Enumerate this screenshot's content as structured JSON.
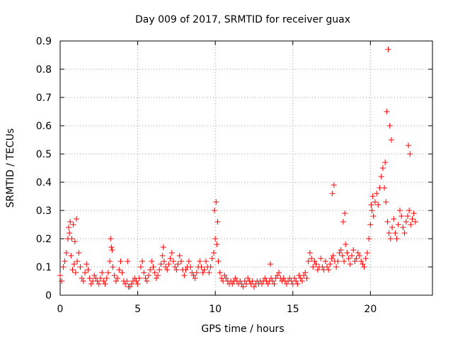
{
  "chart_data": {
    "type": "scatter",
    "title": "Day 009 of 2017, SRMTID for receiver guax",
    "xlabel": "GPS time / hours",
    "ylabel": "SRMTID / TECUs",
    "xlim": [
      0,
      24
    ],
    "ylim": [
      0,
      0.9
    ],
    "xticks": [
      0,
      5,
      10,
      15,
      20
    ],
    "yticks": [
      0,
      0.1,
      0.2,
      0.3,
      0.4,
      0.5,
      0.6,
      0.7,
      0.8,
      0.9
    ],
    "grid": true,
    "marker": "+",
    "color": "#ff0000",
    "series": [
      {
        "name": "SRMTID",
        "x": [
          0.0,
          0.1,
          0.2,
          0.3,
          0.4,
          0.5,
          0.6,
          0.7,
          0.8,
          0.9,
          1.0,
          1.1,
          1.2,
          1.3,
          1.4,
          1.5,
          1.6,
          1.7,
          1.8,
          1.9,
          2.0,
          2.1,
          2.2,
          2.3,
          2.4,
          2.5,
          2.6,
          2.7,
          2.8,
          2.9,
          3.0,
          3.1,
          3.2,
          3.3,
          3.4,
          3.5,
          3.6,
          3.7,
          3.8,
          3.9,
          4.0,
          4.1,
          4.2,
          4.3,
          4.4,
          4.5,
          4.6,
          4.7,
          4.8,
          4.9,
          5.0,
          5.1,
          5.2,
          5.3,
          5.4,
          5.5,
          5.6,
          5.7,
          5.8,
          5.9,
          6.0,
          6.1,
          6.2,
          6.3,
          6.4,
          6.5,
          6.6,
          6.7,
          6.8,
          6.9,
          7.0,
          7.1,
          7.2,
          7.3,
          7.4,
          7.5,
          7.6,
          7.7,
          7.8,
          7.9,
          8.0,
          8.1,
          8.2,
          8.3,
          8.4,
          8.5,
          8.6,
          8.7,
          8.8,
          8.9,
          9.0,
          9.1,
          9.2,
          9.3,
          9.4,
          9.5,
          9.6,
          9.7,
          9.8,
          9.9,
          10.0,
          10.1,
          10.2,
          10.3,
          10.4,
          10.5,
          10.6,
          10.7,
          10.8,
          10.9,
          11.0,
          11.1,
          11.2,
          11.3,
          11.4,
          11.5,
          11.6,
          11.7,
          11.8,
          11.9,
          12.0,
          12.1,
          12.2,
          12.3,
          12.4,
          12.5,
          12.6,
          12.7,
          12.8,
          12.9,
          13.0,
          13.1,
          13.2,
          13.3,
          13.4,
          13.5,
          13.6,
          13.7,
          13.8,
          13.9,
          14.0,
          14.1,
          14.2,
          14.3,
          14.4,
          14.5,
          14.6,
          14.7,
          14.8,
          14.9,
          15.0,
          15.1,
          15.2,
          15.3,
          15.4,
          15.5,
          15.6,
          15.7,
          15.8,
          15.9,
          16.0,
          16.1,
          16.2,
          16.3,
          16.4,
          16.5,
          16.6,
          16.7,
          16.8,
          16.9,
          17.0,
          17.1,
          17.2,
          17.3,
          17.4,
          17.5,
          17.6,
          17.7,
          17.8,
          17.9,
          18.0,
          18.1,
          18.2,
          18.3,
          18.4,
          18.5,
          18.6,
          18.7,
          18.8,
          18.9,
          19.0,
          19.1,
          19.2,
          19.3,
          19.4,
          19.5,
          19.6,
          19.7,
          19.8,
          19.9,
          20.0,
          20.1,
          20.2,
          20.3,
          20.4,
          20.5,
          20.6,
          20.7,
          20.8,
          20.9,
          21.0,
          21.1,
          21.2,
          21.3,
          21.4,
          21.5,
          21.6,
          21.7,
          21.8,
          21.9,
          22.0,
          22.1,
          22.2,
          22.3,
          22.4,
          22.5,
          22.6,
          22.7,
          22.8,
          22.9,
          0.55,
          0.65,
          0.75,
          0.85,
          0.95,
          1.05,
          3.25,
          3.35,
          4.35,
          6.65,
          9.95,
          10.05,
          10.15,
          13.55,
          17.55,
          17.65,
          18.25,
          18.35,
          20.05,
          20.15,
          20.95,
          21.05,
          21.15,
          21.25,
          21.35,
          22.45,
          22.55
        ],
        "y": [
          0.07,
          0.05,
          0.1,
          0.12,
          0.15,
          0.2,
          0.22,
          0.14,
          0.09,
          0.11,
          0.08,
          0.12,
          0.15,
          0.1,
          0.06,
          0.05,
          0.08,
          0.11,
          0.09,
          0.06,
          0.04,
          0.05,
          0.07,
          0.06,
          0.05,
          0.04,
          0.06,
          0.08,
          0.05,
          0.04,
          0.06,
          0.08,
          0.12,
          0.17,
          0.1,
          0.07,
          0.05,
          0.06,
          0.09,
          0.12,
          0.08,
          0.05,
          0.04,
          0.05,
          0.03,
          0.03,
          0.04,
          0.05,
          0.06,
          0.05,
          0.04,
          0.06,
          0.1,
          0.12,
          0.08,
          0.06,
          0.05,
          0.07,
          0.09,
          0.12,
          0.1,
          0.08,
          0.06,
          0.07,
          0.09,
          0.11,
          0.14,
          0.12,
          0.1,
          0.09,
          0.11,
          0.13,
          0.15,
          0.12,
          0.1,
          0.09,
          0.11,
          0.14,
          0.12,
          0.09,
          0.07,
          0.09,
          0.1,
          0.12,
          0.1,
          0.08,
          0.07,
          0.06,
          0.08,
          0.1,
          0.12,
          0.1,
          0.08,
          0.09,
          0.12,
          0.1,
          0.08,
          0.1,
          0.13,
          0.15,
          0.2,
          0.18,
          0.12,
          0.08,
          0.06,
          0.05,
          0.07,
          0.06,
          0.05,
          0.04,
          0.05,
          0.04,
          0.05,
          0.06,
          0.05,
          0.04,
          0.05,
          0.04,
          0.03,
          0.05,
          0.04,
          0.06,
          0.05,
          0.04,
          0.05,
          0.03,
          0.04,
          0.05,
          0.04,
          0.05,
          0.04,
          0.05,
          0.06,
          0.05,
          0.04,
          0.05,
          0.06,
          0.05,
          0.04,
          0.06,
          0.07,
          0.08,
          0.06,
          0.05,
          0.06,
          0.05,
          0.04,
          0.05,
          0.06,
          0.05,
          0.04,
          0.06,
          0.05,
          0.04,
          0.07,
          0.06,
          0.05,
          0.07,
          0.08,
          0.06,
          0.12,
          0.15,
          0.13,
          0.1,
          0.12,
          0.11,
          0.09,
          0.1,
          0.13,
          0.1,
          0.09,
          0.12,
          0.1,
          0.09,
          0.11,
          0.13,
          0.14,
          0.12,
          0.1,
          0.12,
          0.15,
          0.16,
          0.14,
          0.12,
          0.18,
          0.15,
          0.13,
          0.11,
          0.14,
          0.16,
          0.12,
          0.13,
          0.15,
          0.14,
          0.12,
          0.11,
          0.1,
          0.13,
          0.15,
          0.2,
          0.25,
          0.3,
          0.28,
          0.33,
          0.36,
          0.32,
          0.38,
          0.42,
          0.45,
          0.38,
          0.33,
          0.26,
          0.22,
          0.2,
          0.24,
          0.27,
          0.22,
          0.2,
          0.25,
          0.3,
          0.28,
          0.24,
          0.22,
          0.26,
          0.28,
          0.3,
          0.25,
          0.27,
          0.29,
          0.26,
          0.24,
          0.26,
          0.2,
          0.25,
          0.19,
          0.27,
          0.2,
          0.16,
          0.12,
          0.17,
          0.3,
          0.33,
          0.26,
          0.11,
          0.36,
          0.39,
          0.26,
          0.29,
          0.32,
          0.35,
          0.47,
          0.65,
          0.87,
          0.6,
          0.55,
          0.53,
          0.5
        ]
      }
    ]
  }
}
